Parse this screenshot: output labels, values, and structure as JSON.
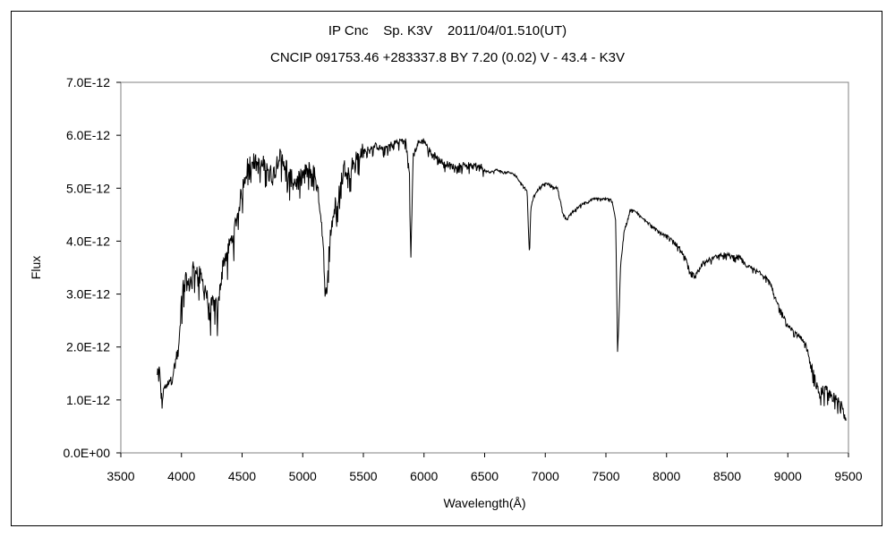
{
  "chart_data": {
    "type": "line",
    "title": "IP Cnc    Sp. K3V    2011/04/01.510(UT)",
    "subtitle": "CNCIP 091753.46 +283337.8 BY 7.20 (0.02) V - 43.4 - K3V",
    "xlabel": "Wavelength(Å)",
    "ylabel": "Flux",
    "xlim": [
      3500,
      9500
    ],
    "ylim": [
      0,
      7e-12
    ],
    "xticks": [
      "3500",
      "4000",
      "4500",
      "5000",
      "5500",
      "6000",
      "6500",
      "7000",
      "7500",
      "8000",
      "8500",
      "9000",
      "9500"
    ],
    "yticks": [
      "0.0E+00",
      "1.0E-12",
      "2.0E-12",
      "3.0E-12",
      "4.0E-12",
      "5.0E-12",
      "6.0E-12",
      "7.0E-12"
    ],
    "grid": false,
    "series": [
      {
        "color": "#000000",
        "x": [
          3800,
          3820,
          3840,
          3860,
          3880,
          3900,
          3920,
          3950,
          3980,
          4000,
          4020,
          4040,
          4060,
          4080,
          4100,
          4150,
          4200,
          4230,
          4260,
          4300,
          4330,
          4360,
          4400,
          4430,
          4460,
          4500,
          4530,
          4560,
          4600,
          4650,
          4700,
          4750,
          4800,
          4850,
          4900,
          4950,
          5000,
          5050,
          5100,
          5150,
          5170,
          5185,
          5200,
          5230,
          5270,
          5300,
          5340,
          5380,
          5420,
          5460,
          5500,
          5550,
          5600,
          5650,
          5700,
          5750,
          5800,
          5850,
          5880,
          5890,
          5896,
          5910,
          5950,
          6000,
          6050,
          6100,
          6150,
          6200,
          6250,
          6300,
          6350,
          6400,
          6450,
          6500,
          6550,
          6600,
          6650,
          6700,
          6750,
          6800,
          6850,
          6865,
          6870,
          6880,
          6900,
          6950,
          7000,
          7050,
          7100,
          7150,
          7180,
          7200,
          7250,
          7300,
          7350,
          7400,
          7450,
          7500,
          7550,
          7580,
          7590,
          7595,
          7605,
          7620,
          7650,
          7700,
          7750,
          7800,
          7850,
          7900,
          7950,
          8000,
          8050,
          8100,
          8150,
          8200,
          8250,
          8300,
          8350,
          8400,
          8450,
          8500,
          8550,
          8600,
          8650,
          8700,
          8750,
          8800,
          8850,
          8900,
          8950,
          9000,
          9050,
          9100,
          9150,
          9200,
          9250,
          9300,
          9350,
          9400,
          9450,
          9480
        ],
        "y": [
          1.5e-12,
          1.6e-12,
          9.5e-13,
          1.3e-12,
          1.25e-12,
          1.4e-12,
          1.35e-12,
          1.75e-12,
          2.05e-12,
          2.9e-12,
          3.2e-12,
          3.25e-12,
          3.15e-12,
          3.3e-12,
          3.55e-12,
          3.35e-12,
          3.1e-12,
          2.65e-12,
          2.85e-12,
          2.7e-12,
          3.4e-12,
          3.7e-12,
          3.95e-12,
          4.15e-12,
          4.5e-12,
          4.95e-12,
          5.3e-12,
          5.55e-12,
          5.5e-12,
          5.4e-12,
          5.5e-12,
          5.2e-12,
          5.6e-12,
          5.5e-12,
          5.2e-12,
          5.1e-12,
          5.25e-12,
          5.35e-12,
          5.3e-12,
          4.5e-12,
          3.9e-12,
          2.8e-12,
          3.3e-12,
          4.2e-12,
          4.7e-12,
          4.95e-12,
          5.4e-12,
          5.3e-12,
          5.5e-12,
          5.6e-12,
          5.7e-12,
          5.75e-12,
          5.8e-12,
          5.75e-12,
          5.8e-12,
          5.85e-12,
          5.9e-12,
          5.9e-12,
          5.3e-12,
          3.7e-12,
          4.2e-12,
          5.6e-12,
          5.85e-12,
          5.9e-12,
          5.7e-12,
          5.6e-12,
          5.5e-12,
          5.45e-12,
          5.4e-12,
          5.45e-12,
          5.45e-12,
          5.4e-12,
          5.45e-12,
          5.35e-12,
          5.3e-12,
          5.35e-12,
          5.3e-12,
          5.3e-12,
          5.25e-12,
          5.1e-12,
          4.95e-12,
          4e-12,
          3.7e-12,
          4.6e-12,
          4.85e-12,
          5e-12,
          5.1e-12,
          5.05e-12,
          5e-12,
          4.5e-12,
          4.4e-12,
          4.5e-12,
          4.6e-12,
          4.7e-12,
          4.75e-12,
          4.8e-12,
          4.8e-12,
          4.8e-12,
          4.78e-12,
          4.4e-12,
          3e-12,
          1.9e-12,
          2.4e-12,
          3.5e-12,
          4.2e-12,
          4.6e-12,
          4.55e-12,
          4.45e-12,
          4.35e-12,
          4.25e-12,
          4.15e-12,
          4.1e-12,
          4e-12,
          3.9e-12,
          3.7e-12,
          3.4e-12,
          3.4e-12,
          3.6e-12,
          3.65e-12,
          3.7e-12,
          3.75e-12,
          3.75e-12,
          3.7e-12,
          3.72e-12,
          3.55e-12,
          3.5e-12,
          3.45e-12,
          3.35e-12,
          3.25e-12,
          2.9e-12,
          2.65e-12,
          2.4e-12,
          2.3e-12,
          2.2e-12,
          2.05e-12,
          1.6e-12,
          1.15e-12,
          1.2e-12,
          1.1e-12,
          1e-12,
          9e-13,
          6.5e-13
        ]
      }
    ]
  }
}
